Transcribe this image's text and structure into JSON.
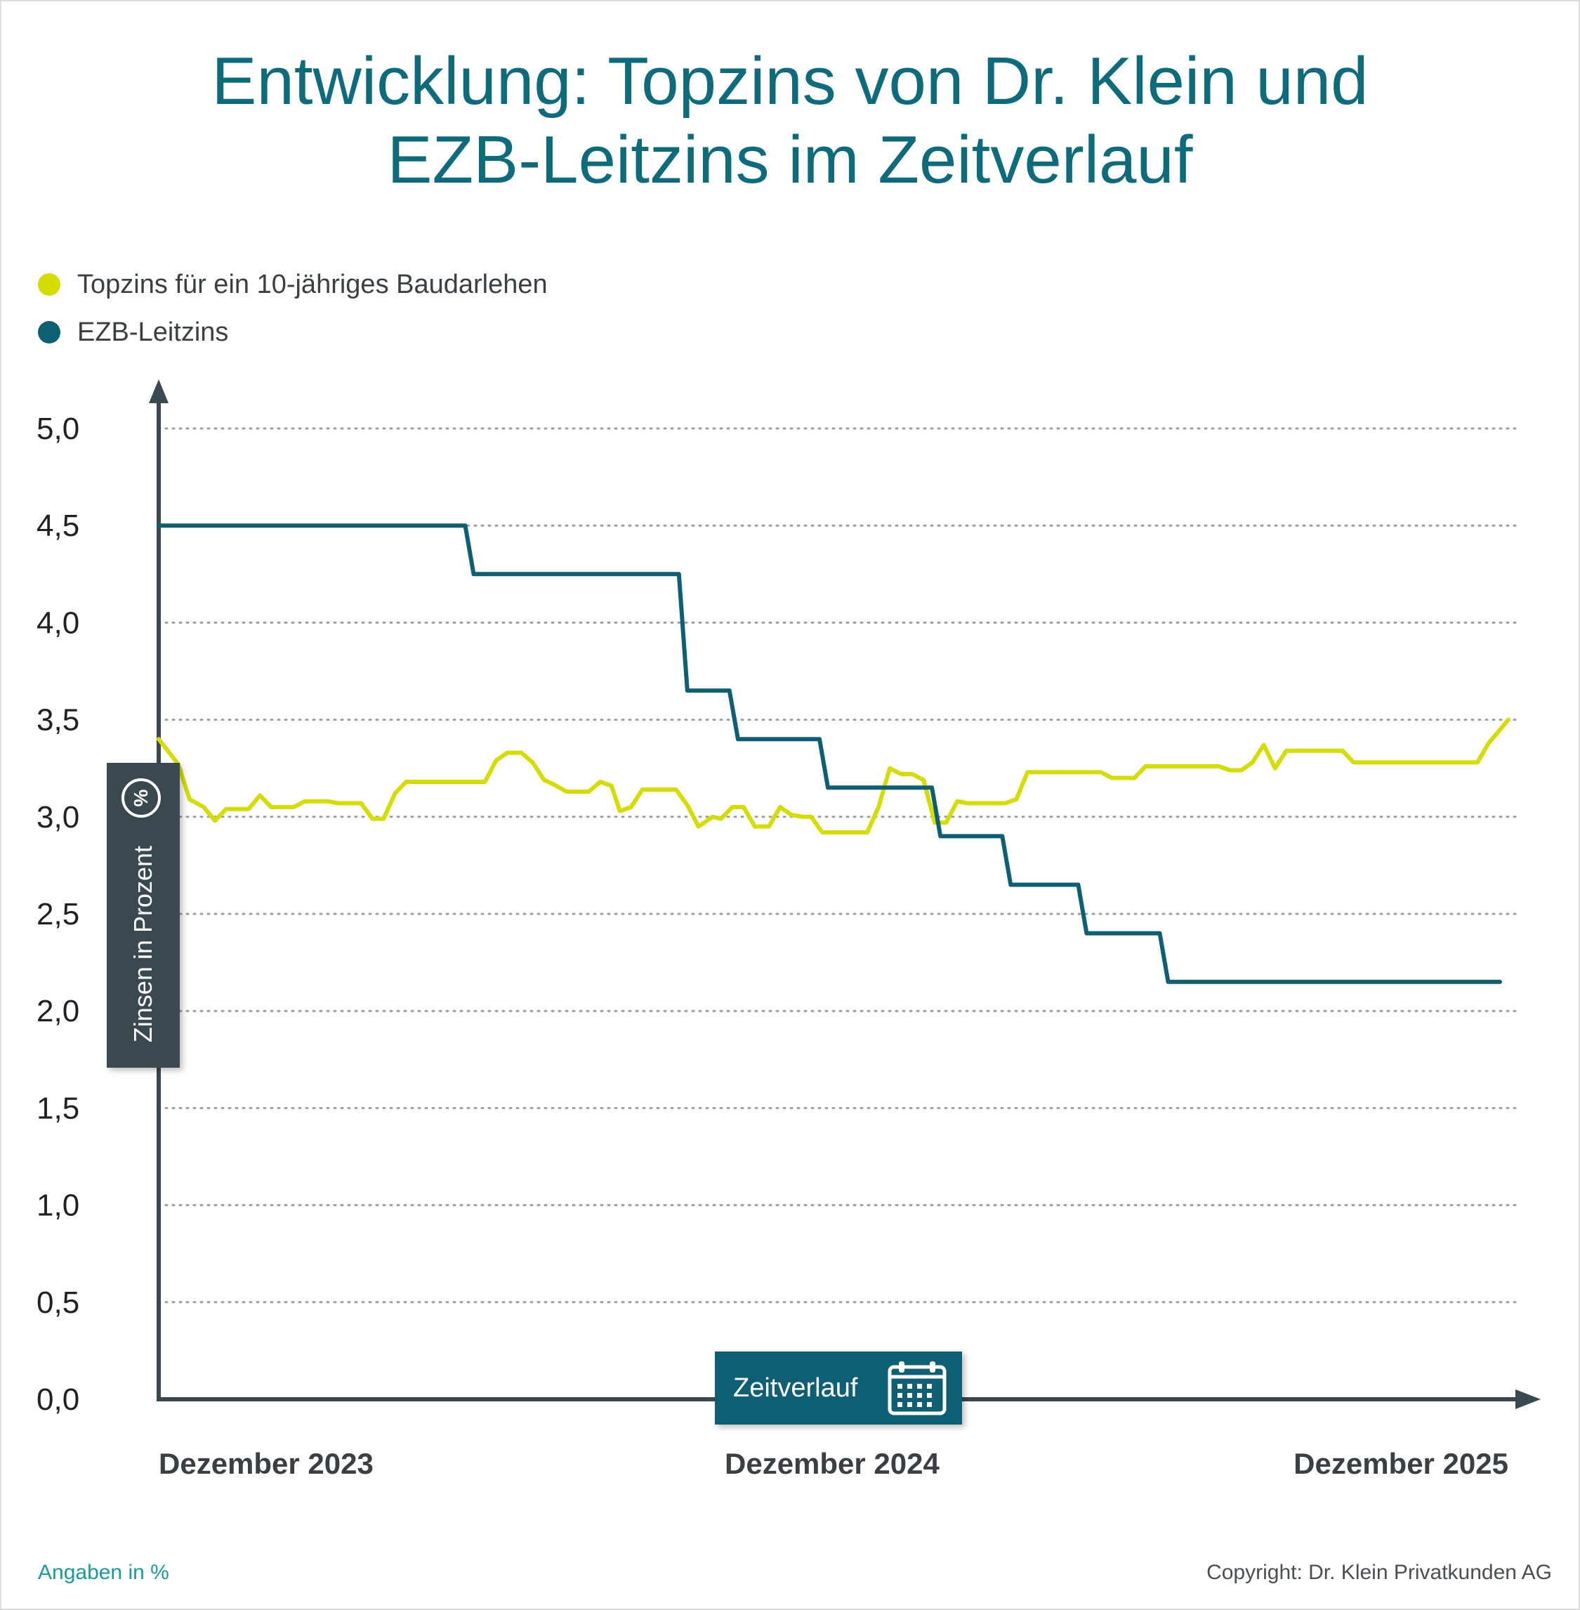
{
  "title_lines": [
    "Entwicklung: Topzins von Dr. Klein und",
    "EZB-Leitzins im Zeitverlauf"
  ],
  "legend": [
    {
      "label": "Topzins für ein 10-jähriges Baudarlehen",
      "color": "#d4dc00"
    },
    {
      "label": "EZB-Leitzins",
      "color": "#0e5f73"
    }
  ],
  "y_axis_label": "Zinsen in Prozent",
  "y_axis_icon": "percent-icon",
  "x_axis_label": "Zeitverlauf",
  "x_axis_icon": "calendar-icon",
  "footer_note": "Angaben in %",
  "copyright": "Copyright: Dr. Klein Privatkunden AG",
  "chart_data": {
    "type": "line",
    "title": "Entwicklung: Topzins von Dr. Klein und EZB-Leitzins im Zeitverlauf",
    "ylabel": "Zinsen in Prozent",
    "xlabel": "Zeitverlauf",
    "ylim": [
      0,
      5
    ],
    "yticks": [
      "0,0",
      "0,5",
      "1,0",
      "1,5",
      "2,0",
      "2,5",
      "3,0",
      "3,5",
      "4,0",
      "4,5",
      "5,0"
    ],
    "xlim": [
      0,
      24
    ],
    "x_categories": [
      {
        "label": "Dezember 2023",
        "x": 0
      },
      {
        "label": "Dezember 2024",
        "x": 12
      },
      {
        "label": "Dezember 2025",
        "x": 24
      }
    ],
    "grid": true,
    "legend_position": "top-left",
    "series": [
      {
        "name": "Topzins für ein 10-jähriges Baudarlehen",
        "color": "#d4dc00",
        "points": [
          [
            0.0,
            3.4
          ],
          [
            0.35,
            3.27
          ],
          [
            0.55,
            3.09
          ],
          [
            0.8,
            3.05
          ],
          [
            1.0,
            2.98
          ],
          [
            1.2,
            3.04
          ],
          [
            1.6,
            3.04
          ],
          [
            1.8,
            3.11
          ],
          [
            2.0,
            3.05
          ],
          [
            2.4,
            3.05
          ],
          [
            2.6,
            3.08
          ],
          [
            3.0,
            3.08
          ],
          [
            3.2,
            3.07
          ],
          [
            3.6,
            3.07
          ],
          [
            3.8,
            2.99
          ],
          [
            4.0,
            2.99
          ],
          [
            4.2,
            3.12
          ],
          [
            4.4,
            3.18
          ],
          [
            5.8,
            3.18
          ],
          [
            6.0,
            3.29
          ],
          [
            6.2,
            3.33
          ],
          [
            6.45,
            3.33
          ],
          [
            6.65,
            3.28
          ],
          [
            6.85,
            3.19
          ],
          [
            7.0,
            3.17
          ],
          [
            7.25,
            3.13
          ],
          [
            7.65,
            3.13
          ],
          [
            7.85,
            3.18
          ],
          [
            8.05,
            3.16
          ],
          [
            8.2,
            3.03
          ],
          [
            8.4,
            3.05
          ],
          [
            8.6,
            3.14
          ],
          [
            9.2,
            3.14
          ],
          [
            9.4,
            3.06
          ],
          [
            9.6,
            2.95
          ],
          [
            9.85,
            3.0
          ],
          [
            10.0,
            2.99
          ],
          [
            10.2,
            3.05
          ],
          [
            10.4,
            3.05
          ],
          [
            10.6,
            2.95
          ],
          [
            10.85,
            2.95
          ],
          [
            11.05,
            3.05
          ],
          [
            11.25,
            3.01
          ],
          [
            11.45,
            3.0
          ],
          [
            11.6,
            3.0
          ],
          [
            11.8,
            2.92
          ],
          [
            12.6,
            2.92
          ],
          [
            12.8,
            3.05
          ],
          [
            13.0,
            3.25
          ],
          [
            13.2,
            3.22
          ],
          [
            13.4,
            3.22
          ],
          [
            13.6,
            3.19
          ],
          [
            13.8,
            2.97
          ],
          [
            14.0,
            2.97
          ],
          [
            14.2,
            3.08
          ],
          [
            14.4,
            3.07
          ],
          [
            15.05,
            3.07
          ],
          [
            15.25,
            3.09
          ],
          [
            15.45,
            3.23
          ],
          [
            16.75,
            3.23
          ],
          [
            16.95,
            3.2
          ],
          [
            17.35,
            3.2
          ],
          [
            17.55,
            3.26
          ],
          [
            18.85,
            3.26
          ],
          [
            19.05,
            3.24
          ],
          [
            19.25,
            3.24
          ],
          [
            19.45,
            3.28
          ],
          [
            19.65,
            3.37
          ],
          [
            19.85,
            3.25
          ],
          [
            20.05,
            3.34
          ],
          [
            21.05,
            3.34
          ],
          [
            21.25,
            3.28
          ],
          [
            23.45,
            3.28
          ],
          [
            23.65,
            3.38
          ],
          [
            24.0,
            3.5
          ]
        ]
      },
      {
        "name": "EZB-Leitzins",
        "color": "#0e5f73",
        "points": [
          [
            0.0,
            4.5
          ],
          [
            5.45,
            4.5
          ],
          [
            5.6,
            4.25
          ],
          [
            9.25,
            4.25
          ],
          [
            9.4,
            3.65
          ],
          [
            10.15,
            3.65
          ],
          [
            10.3,
            3.4
          ],
          [
            11.75,
            3.4
          ],
          [
            11.9,
            3.15
          ],
          [
            13.75,
            3.15
          ],
          [
            13.9,
            2.9
          ],
          [
            15.0,
            2.9
          ],
          [
            15.15,
            2.65
          ],
          [
            16.35,
            2.65
          ],
          [
            16.5,
            2.4
          ],
          [
            17.8,
            2.4
          ],
          [
            17.95,
            2.15
          ],
          [
            23.85,
            2.15
          ]
        ]
      }
    ]
  }
}
